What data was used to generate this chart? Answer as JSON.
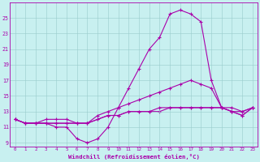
{
  "xlabel": "Windchill (Refroidissement éolien,°C)",
  "x": [
    0,
    1,
    2,
    3,
    4,
    5,
    6,
    7,
    8,
    9,
    10,
    11,
    12,
    13,
    14,
    15,
    16,
    17,
    18,
    19,
    20,
    21,
    22,
    23
  ],
  "line_main": [
    12.0,
    11.5,
    11.5,
    11.5,
    11.0,
    11.0,
    9.5,
    9.0,
    9.5,
    11.0,
    13.5,
    16.0,
    18.5,
    21.0,
    22.5,
    25.5,
    26.0,
    25.5,
    24.5,
    17.0,
    13.5,
    13.0,
    12.5,
    13.5
  ],
  "line_mid": [
    12.0,
    11.5,
    11.5,
    12.0,
    12.0,
    12.0,
    11.5,
    11.5,
    12.5,
    13.0,
    13.5,
    14.0,
    14.5,
    15.0,
    15.5,
    16.0,
    16.5,
    17.0,
    16.5,
    16.0,
    13.5,
    13.5,
    13.0,
    13.5
  ],
  "line_flat1": [
    12.0,
    11.5,
    11.5,
    11.5,
    11.5,
    11.5,
    11.5,
    11.5,
    12.0,
    12.5,
    12.5,
    13.0,
    13.0,
    13.0,
    13.5,
    13.5,
    13.5,
    13.5,
    13.5,
    13.5,
    13.5,
    13.0,
    13.0,
    13.5
  ],
  "line_flat2": [
    12.0,
    11.5,
    11.5,
    11.5,
    11.5,
    11.5,
    11.5,
    11.5,
    12.0,
    12.5,
    12.5,
    13.0,
    13.0,
    13.0,
    13.0,
    13.5,
    13.5,
    13.5,
    13.5,
    13.5,
    13.5,
    13.0,
    12.5,
    13.5
  ],
  "yticks": [
    9,
    11,
    13,
    15,
    17,
    19,
    21,
    23,
    25
  ],
  "ylim": [
    8.5,
    27.0
  ],
  "xlim": [
    -0.5,
    23.5
  ],
  "line_color": "#aa00aa",
  "bg_color": "#c8f0f0",
  "grid_color": "#99cccc"
}
